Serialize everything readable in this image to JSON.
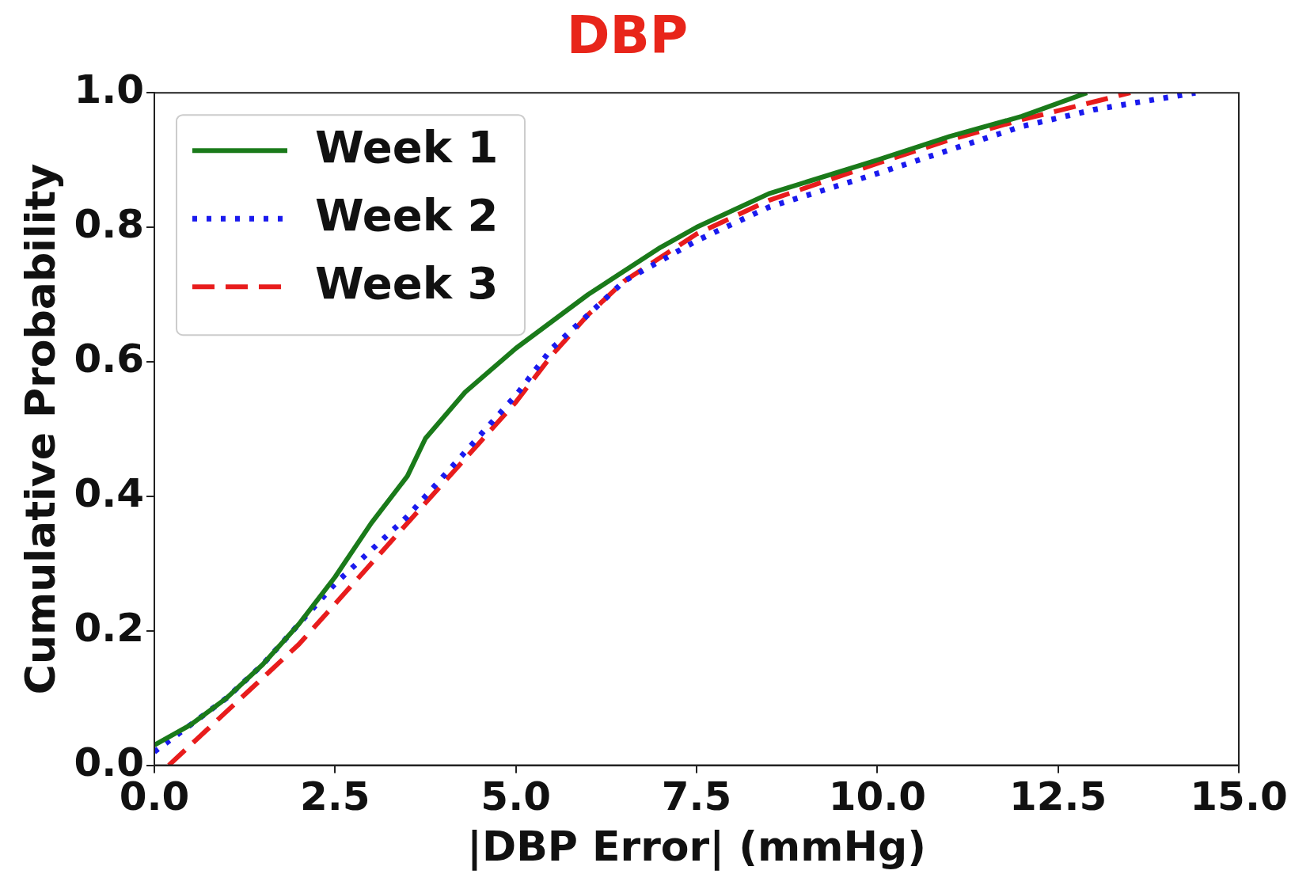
{
  "chart_data": {
    "type": "line",
    "title": "DBP",
    "xlabel": "|DBP Error| (mmHg)",
    "ylabel": "Cumulative Probability",
    "xlim": [
      0,
      15
    ],
    "xticks": [
      {
        "value": 0,
        "label": "0.0"
      },
      {
        "value": 2.5,
        "label": "2.5"
      },
      {
        "value": 5,
        "label": "5.0"
      },
      {
        "value": 7.5,
        "label": "7.5"
      },
      {
        "value": 10,
        "label": "10.0"
      },
      {
        "value": 12.5,
        "label": "12.5"
      },
      {
        "value": 15,
        "label": "15.0"
      }
    ],
    "ylim": [
      0,
      1
    ],
    "yticks": [
      {
        "value": 0,
        "label": "0.0"
      },
      {
        "value": 0.2,
        "label": "0.2"
      },
      {
        "value": 0.4,
        "label": "0.4"
      },
      {
        "value": 0.6,
        "label": "0.6"
      },
      {
        "value": 0.8,
        "label": "0.8"
      },
      {
        "value": 1,
        "label": "1.0"
      }
    ],
    "grid": false,
    "legend": "top left",
    "series": [
      {
        "name": "Week 1",
        "color": "#1a7a1a",
        "line_style": "solid",
        "x": [
          0,
          0.5,
          1,
          1.5,
          2,
          2.5,
          3,
          3.5,
          3.75,
          4.3,
          5,
          5.5,
          6,
          7,
          7.5,
          8.5,
          10,
          11,
          12,
          12.9
        ],
        "values": [
          0.03,
          0.06,
          0.1,
          0.15,
          0.21,
          0.28,
          0.36,
          0.43,
          0.486,
          0.555,
          0.62,
          0.66,
          0.7,
          0.77,
          0.8,
          0.85,
          0.9,
          0.935,
          0.965,
          1
        ]
      },
      {
        "name": "Week 2",
        "color": "#1a1aee",
        "line_style": "dotted",
        "x": [
          0,
          0.5,
          1,
          1.5,
          2,
          2.5,
          3,
          3.5,
          4,
          4.5,
          5,
          5.5,
          6,
          6.5,
          7.5,
          8.5,
          10,
          11,
          12,
          13,
          14.4
        ],
        "values": [
          0.02,
          0.06,
          0.1,
          0.15,
          0.21,
          0.27,
          0.32,
          0.37,
          0.43,
          0.49,
          0.55,
          0.62,
          0.67,
          0.72,
          0.78,
          0.83,
          0.88,
          0.915,
          0.95,
          0.975,
          1
        ]
      },
      {
        "name": "Week 3",
        "color": "#e81c1c",
        "line_style": "dashed",
        "x": [
          0.2,
          0.5,
          1,
          1.5,
          2,
          2.5,
          3,
          3.5,
          4,
          4.5,
          5,
          5.5,
          6,
          6.5,
          7.5,
          8.5,
          10,
          11,
          12,
          13.5
        ],
        "values": [
          0,
          0.03,
          0.08,
          0.13,
          0.18,
          0.24,
          0.3,
          0.36,
          0.42,
          0.48,
          0.54,
          0.61,
          0.67,
          0.72,
          0.79,
          0.84,
          0.895,
          0.93,
          0.96,
          1
        ]
      }
    ]
  }
}
